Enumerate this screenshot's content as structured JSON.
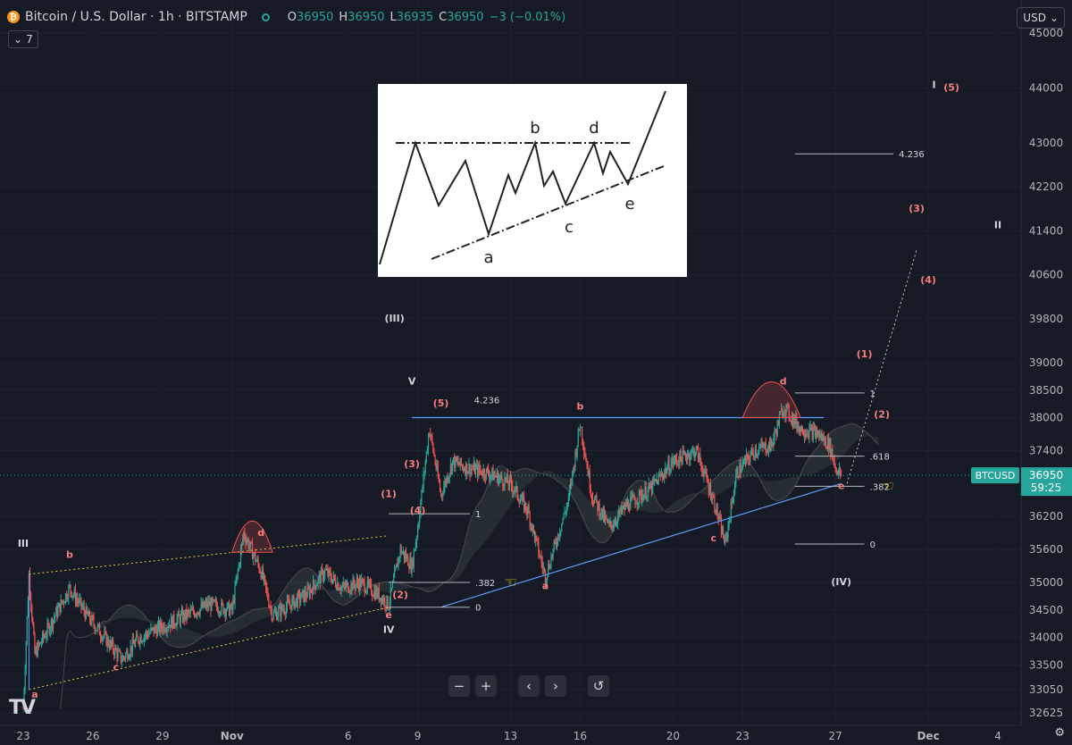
{
  "header": {
    "title": "Bitcoin / U.S. Dollar · 1h · BITSTAMP",
    "o_label": "O",
    "o": "36950",
    "h_label": "H",
    "h": "36950",
    "l_label": "L",
    "l": "36935",
    "c_label": "C",
    "c": "36950",
    "change": "−3 (−0.01%)",
    "indicator_count": "7"
  },
  "currency": "USD",
  "colors": {
    "bg": "#161a25",
    "up": "#26a69a",
    "down": "#ef5350",
    "line": "#5b9cf6",
    "wave": "#ef5350"
  },
  "chart_data": {
    "type": "candlestick",
    "symbol": "BTCUSD",
    "price_label": "36950",
    "countdown": "59:25",
    "y_ticks": [
      "45000",
      "44000",
      "43000",
      "42200",
      "41400",
      "40600",
      "39800",
      "39000",
      "38500",
      "38000",
      "37400",
      "36950",
      "36200",
      "35600",
      "35000",
      "34500",
      "34000",
      "33500",
      "33050",
      "32625"
    ],
    "x_ticks": [
      "23",
      "26",
      "29",
      "Nov",
      "6",
      "9",
      "13",
      "16",
      "20",
      "23",
      "27",
      "Dec",
      "4"
    ],
    "ylim": [
      32400,
      45600
    ],
    "xlim": [
      "2023-10-22",
      "2023-12-05"
    ],
    "price_path": [
      [
        "2023-10-23T00:00",
        32700
      ],
      [
        "2023-10-23T06:00",
        35150
      ],
      [
        "2023-10-23T12:00",
        33700
      ],
      [
        "2023-10-24T06:00",
        34300
      ],
      [
        "2023-10-25T00:00",
        34900
      ],
      [
        "2023-10-25T18:00",
        34400
      ],
      [
        "2023-10-26T12:00",
        34000
      ],
      [
        "2023-10-27T06:00",
        33600
      ],
      [
        "2023-10-28T00:00",
        34000
      ],
      [
        "2023-10-29T00:00",
        34200
      ],
      [
        "2023-10-30T00:00",
        34400
      ],
      [
        "2023-10-31T00:00",
        34600
      ],
      [
        "2023-11-01T00:00",
        34500
      ],
      [
        "2023-11-01T12:00",
        35900
      ],
      [
        "2023-11-02T06:00",
        35200
      ],
      [
        "2023-11-02T18:00",
        34400
      ],
      [
        "2023-11-03T12:00",
        34600
      ],
      [
        "2023-11-04T06:00",
        34800
      ],
      [
        "2023-11-05T00:00",
        35200
      ],
      [
        "2023-11-05T18:00",
        34900
      ],
      [
        "2023-11-06T12:00",
        35000
      ],
      [
        "2023-11-07T06:00",
        34800
      ],
      [
        "2023-11-07T18:00",
        34600
      ],
      [
        "2023-11-08T06:00",
        35600
      ],
      [
        "2023-11-08T18:00",
        35300
      ],
      [
        "2023-11-09T00:00",
        36000
      ],
      [
        "2023-11-09T12:00",
        37800
      ],
      [
        "2023-11-10T00:00",
        36600
      ],
      [
        "2023-11-10T12:00",
        37200
      ],
      [
        "2023-11-11T00:00",
        37100
      ],
      [
        "2023-11-12T00:00",
        37000
      ],
      [
        "2023-11-13T00:00",
        36800
      ],
      [
        "2023-11-13T18:00",
        36300
      ],
      [
        "2023-11-14T12:00",
        35100
      ],
      [
        "2023-11-15T00:00",
        35800
      ],
      [
        "2023-11-15T12:00",
        36500
      ],
      [
        "2023-11-16T00:00",
        37900
      ],
      [
        "2023-11-16T12:00",
        36600
      ],
      [
        "2023-11-17T06:00",
        36000
      ],
      [
        "2023-11-18T00:00",
        36400
      ],
      [
        "2023-11-19T00:00",
        36700
      ],
      [
        "2023-11-20T00:00",
        37200
      ],
      [
        "2023-11-21T00:00",
        37400
      ],
      [
        "2023-11-21T18:00",
        36500
      ],
      [
        "2023-11-22T06:00",
        35700
      ],
      [
        "2023-11-22T18:00",
        37000
      ],
      [
        "2023-11-23T12:00",
        37400
      ],
      [
        "2023-11-24T06:00",
        37500
      ],
      [
        "2023-11-24T18:00",
        38200
      ],
      [
        "2023-11-25T12:00",
        37800
      ],
      [
        "2023-11-26T06:00",
        37700
      ],
      [
        "2023-11-26T18:00",
        37500
      ],
      [
        "2023-11-27T00:00",
        37100
      ],
      [
        "2023-11-27T06:00",
        36950
      ]
    ],
    "annotations": {
      "waves": [
        {
          "label": "III",
          "date": "2023-10-23T00:00",
          "price": 35650,
          "color": "white"
        },
        {
          "label": "a",
          "date": "2023-10-23T12:00",
          "price": 32900,
          "color": "red"
        },
        {
          "label": "b",
          "date": "2023-10-25T00:00",
          "price": 35450,
          "color": "red"
        },
        {
          "label": "c",
          "date": "2023-10-27T00:00",
          "price": 33400,
          "color": "red"
        },
        {
          "label": "d",
          "date": "2023-11-02T06:00",
          "price": 35850,
          "color": "red"
        },
        {
          "label": "e",
          "date": "2023-11-07T18:00",
          "price": 34350,
          "color": "red"
        },
        {
          "label": "IV",
          "date": "2023-11-07T18:00",
          "price": 34080,
          "color": "white"
        },
        {
          "label": "(1)",
          "date": "2023-11-07T18:00",
          "price": 36550,
          "color": "red"
        },
        {
          "label": "(2)",
          "date": "2023-11-08T06:00",
          "price": 34720,
          "color": "red"
        },
        {
          "label": "(3)",
          "date": "2023-11-08T18:00",
          "price": 37100,
          "color": "red"
        },
        {
          "label": "(4)",
          "date": "2023-11-09T00:00",
          "price": 36250,
          "color": "red"
        },
        {
          "label": "(5)",
          "date": "2023-11-10T00:00",
          "price": 38200,
          "color": "red"
        },
        {
          "label": "V",
          "date": "2023-11-08T18:00",
          "price": 38600,
          "color": "white"
        },
        {
          "label": "(III)",
          "date": "2023-11-08T00:00",
          "price": 39750,
          "color": "white"
        },
        {
          "label": "a",
          "date": "2023-11-14T12:00",
          "price": 34880,
          "color": "red"
        },
        {
          "label": "b",
          "date": "2023-11-16T00:00",
          "price": 38150,
          "color": "red"
        },
        {
          "label": "c",
          "date": "2023-11-21T18:00",
          "price": 35750,
          "color": "red"
        },
        {
          "label": "d",
          "date": "2023-11-24T18:00",
          "price": 38600,
          "color": "red"
        },
        {
          "label": "e",
          "date": "2023-11-27T06:00",
          "price": 36700,
          "color": "red"
        },
        {
          "label": "(IV)",
          "date": "2023-11-27T06:00",
          "price": 34950,
          "color": "white"
        },
        {
          "label": "(1)",
          "date": "2023-11-28T06:00",
          "price": 39100,
          "color": "red"
        },
        {
          "label": "(2)",
          "date": "2023-11-29T00:00",
          "price": 38000,
          "color": "red"
        },
        {
          "label": "(3)",
          "date": "2023-11-30T12:00",
          "price": 41750,
          "color": "red"
        },
        {
          "label": "(4)",
          "date": "2023-12-01T00:00",
          "price": 40450,
          "color": "red"
        },
        {
          "label": "(5)",
          "date": "2023-12-02T00:00",
          "price": 43950,
          "color": "red"
        },
        {
          "label": "I",
          "date": "2023-12-01T06:00",
          "price": 44000,
          "color": "white"
        },
        {
          "label": "II",
          "date": "2023-12-04T00:00",
          "price": 41450,
          "color": "white"
        }
      ],
      "fib_levels": [
        {
          "label": "1",
          "price": 36250
        },
        {
          "label": ".382",
          "price": 35000
        },
        {
          "label": "0",
          "price": 34550
        },
        {
          "label": "4.236",
          "price": 38100
        },
        {
          "label": "4.236",
          "price": 42800
        },
        {
          "label": "1",
          "price": 38450
        },
        {
          "label": ".618",
          "price": 37300
        },
        {
          "label": ".382",
          "price": 36750
        },
        {
          "label": "0",
          "price": 35700
        }
      ]
    }
  }
}
